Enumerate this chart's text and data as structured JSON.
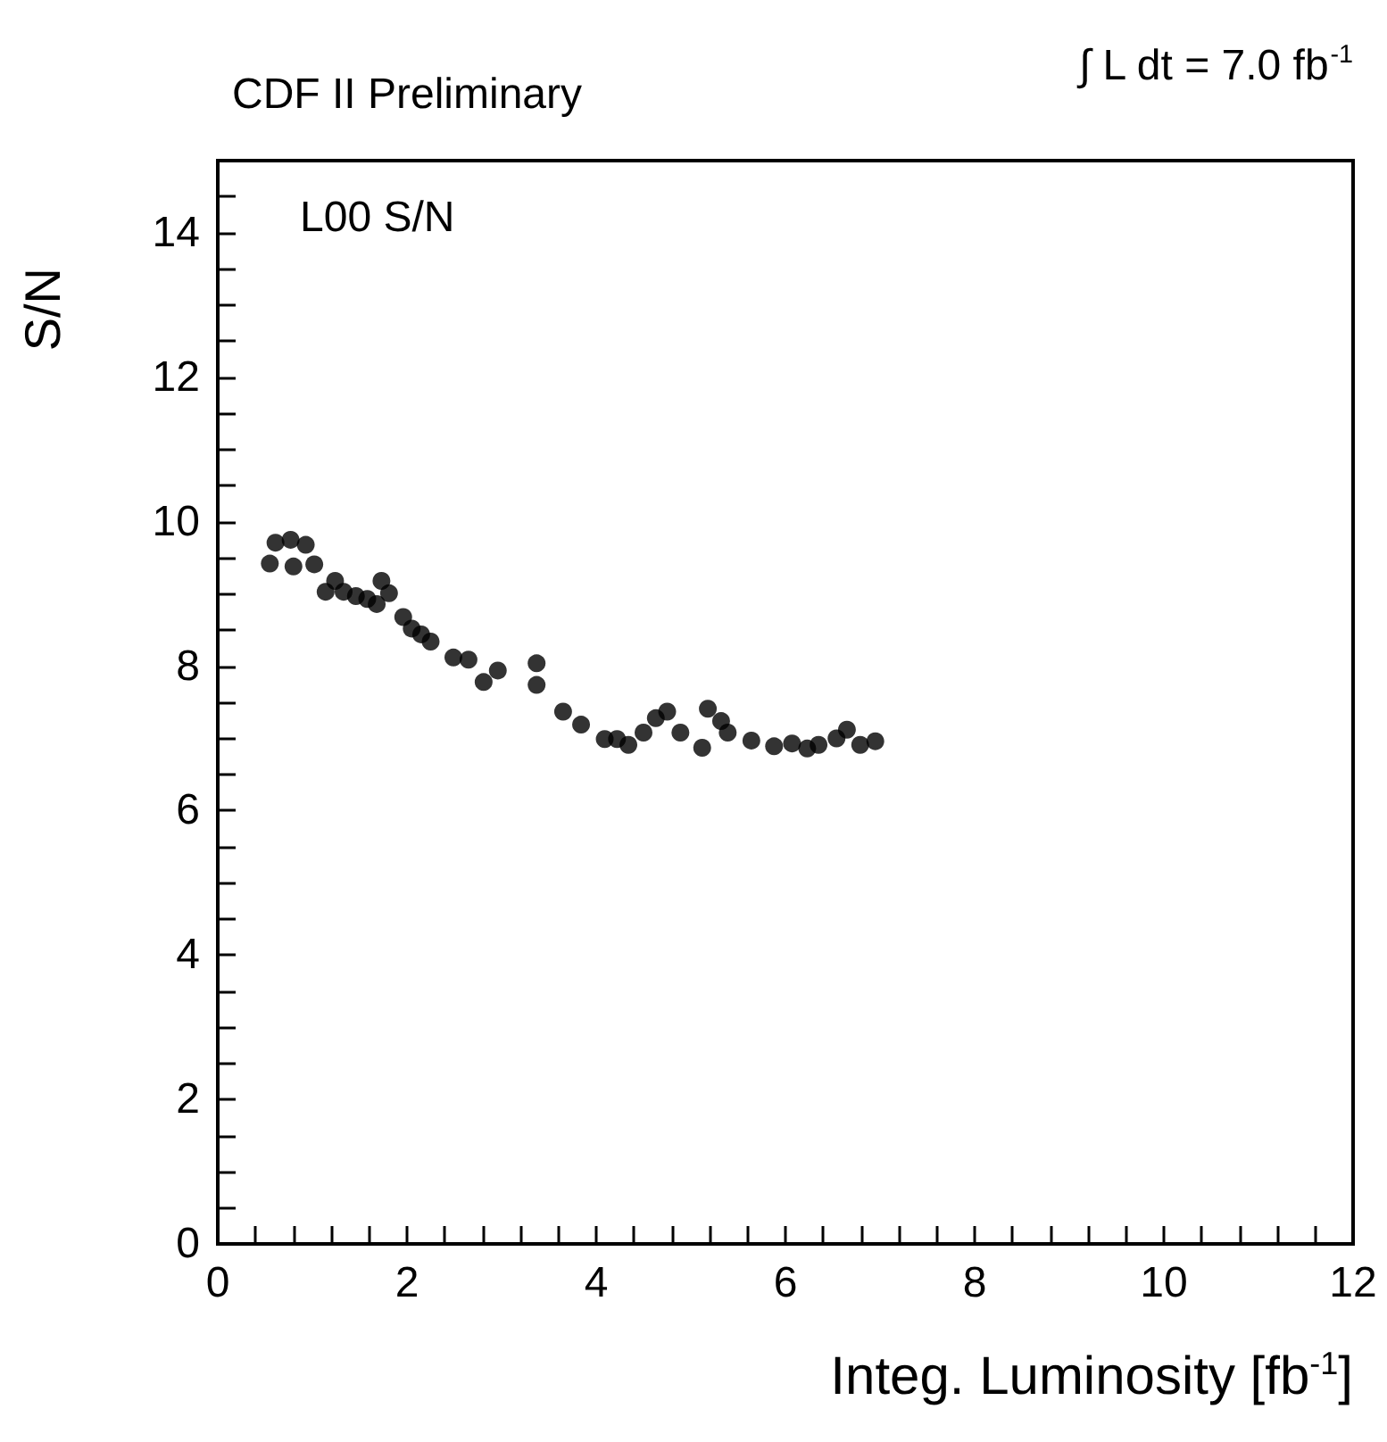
{
  "chart_data": {
    "type": "scatter",
    "title": "CDF II Preliminary",
    "xlabel": "Integ. Luminosity [fb$^{-1}$]",
    "ylabel": "S/N",
    "annotations": [
      "∫ L dt = 7.0 fb$^{-1}$",
      "L00 S/N"
    ],
    "marker": "circle",
    "xlim": [
      0,
      12
    ],
    "ylim": [
      0,
      15
    ],
    "xticks": [
      0,
      {
        "value": 0.4,
        "label": null
      },
      {
        "value": 0.8,
        "label": null
      },
      {
        "value": 1.2,
        "label": null
      },
      {
        "value": 1.6,
        "label": null
      },
      2,
      {
        "value": 2.4,
        "label": null
      },
      {
        "value": 2.8,
        "label": null
      },
      {
        "value": 3.2,
        "label": null
      },
      {
        "value": 3.6,
        "label": null
      },
      4,
      {
        "value": 4.4,
        "label": null
      },
      {
        "value": 4.8,
        "label": null
      },
      {
        "value": 5.2,
        "label": null
      },
      {
        "value": 5.6,
        "label": null
      },
      6,
      {
        "value": 6.4,
        "label": null
      },
      {
        "value": 6.8,
        "label": null
      },
      {
        "value": 7.2,
        "label": null
      },
      {
        "value": 7.6,
        "label": null
      },
      8,
      {
        "value": 8.4,
        "label": null
      },
      {
        "value": 8.8,
        "label": null
      },
      {
        "value": 9.2,
        "label": null
      },
      {
        "value": 9.6,
        "label": null
      },
      10,
      {
        "value": 10.4,
        "label": null
      },
      {
        "value": 10.8,
        "label": null
      },
      {
        "value": 11.2,
        "label": null
      },
      {
        "value": 11.6,
        "label": null
      },
      12
    ],
    "yticks": [
      0,
      {
        "value": 0.5,
        "label": null
      },
      {
        "value": 1,
        "label": null
      },
      {
        "value": 1.5,
        "label": null
      },
      2,
      {
        "value": 2.5,
        "label": null
      },
      {
        "value": 3,
        "label": null
      },
      {
        "value": 3.5,
        "label": null
      },
      4,
      {
        "value": 4.5,
        "label": null
      },
      {
        "value": 5,
        "label": null
      },
      {
        "value": 5.5,
        "label": null
      },
      6,
      {
        "value": 6.5,
        "label": null
      },
      {
        "value": 7,
        "label": null
      },
      {
        "value": 7.5,
        "label": null
      },
      8,
      {
        "value": 8.5,
        "label": null
      },
      {
        "value": 9,
        "label": null
      },
      {
        "value": 9.5,
        "label": null
      },
      10,
      {
        "value": 10.5,
        "label": null
      },
      {
        "value": 11,
        "label": null
      },
      {
        "value": 11.5,
        "label": null
      },
      12,
      {
        "value": 12.5,
        "label": null
      },
      {
        "value": 13,
        "label": null
      },
      {
        "value": 13.5,
        "label": null
      },
      14,
      {
        "value": 14.5,
        "label": null
      }
    ],
    "x": [
      0.55,
      0.61,
      0.77,
      0.8,
      0.93,
      1.02,
      1.14,
      1.24,
      1.33,
      1.46,
      1.58,
      1.68,
      1.73,
      1.81,
      1.96,
      2.05,
      2.15,
      2.25,
      2.49,
      2.65,
      2.81,
      2.96,
      3.37,
      3.37,
      3.65,
      3.84,
      4.09,
      4.22,
      4.34,
      4.5,
      4.63,
      4.75,
      4.89,
      5.12,
      5.18,
      5.32,
      5.39,
      5.64,
      5.88,
      6.07,
      6.23,
      6.35,
      6.54,
      6.65,
      6.79,
      6.95
    ],
    "series": [
      {
        "color": "#000000",
        "values": [
          9.42,
          9.71,
          9.75,
          9.38,
          9.68,
          9.41,
          9.03,
          9.18,
          9.03,
          8.97,
          8.93,
          8.86,
          9.18,
          9.01,
          8.68,
          8.52,
          8.44,
          8.34,
          8.12,
          8.09,
          7.78,
          7.94,
          8.04,
          7.74,
          7.37,
          7.19,
          6.99,
          6.99,
          6.91,
          7.08,
          7.28,
          7.37,
          7.08,
          6.87,
          7.41,
          7.24,
          7.08,
          6.97,
          6.89,
          6.93,
          6.86,
          6.91,
          7.0,
          7.12,
          6.91,
          6.96
        ]
      }
    ]
  }
}
